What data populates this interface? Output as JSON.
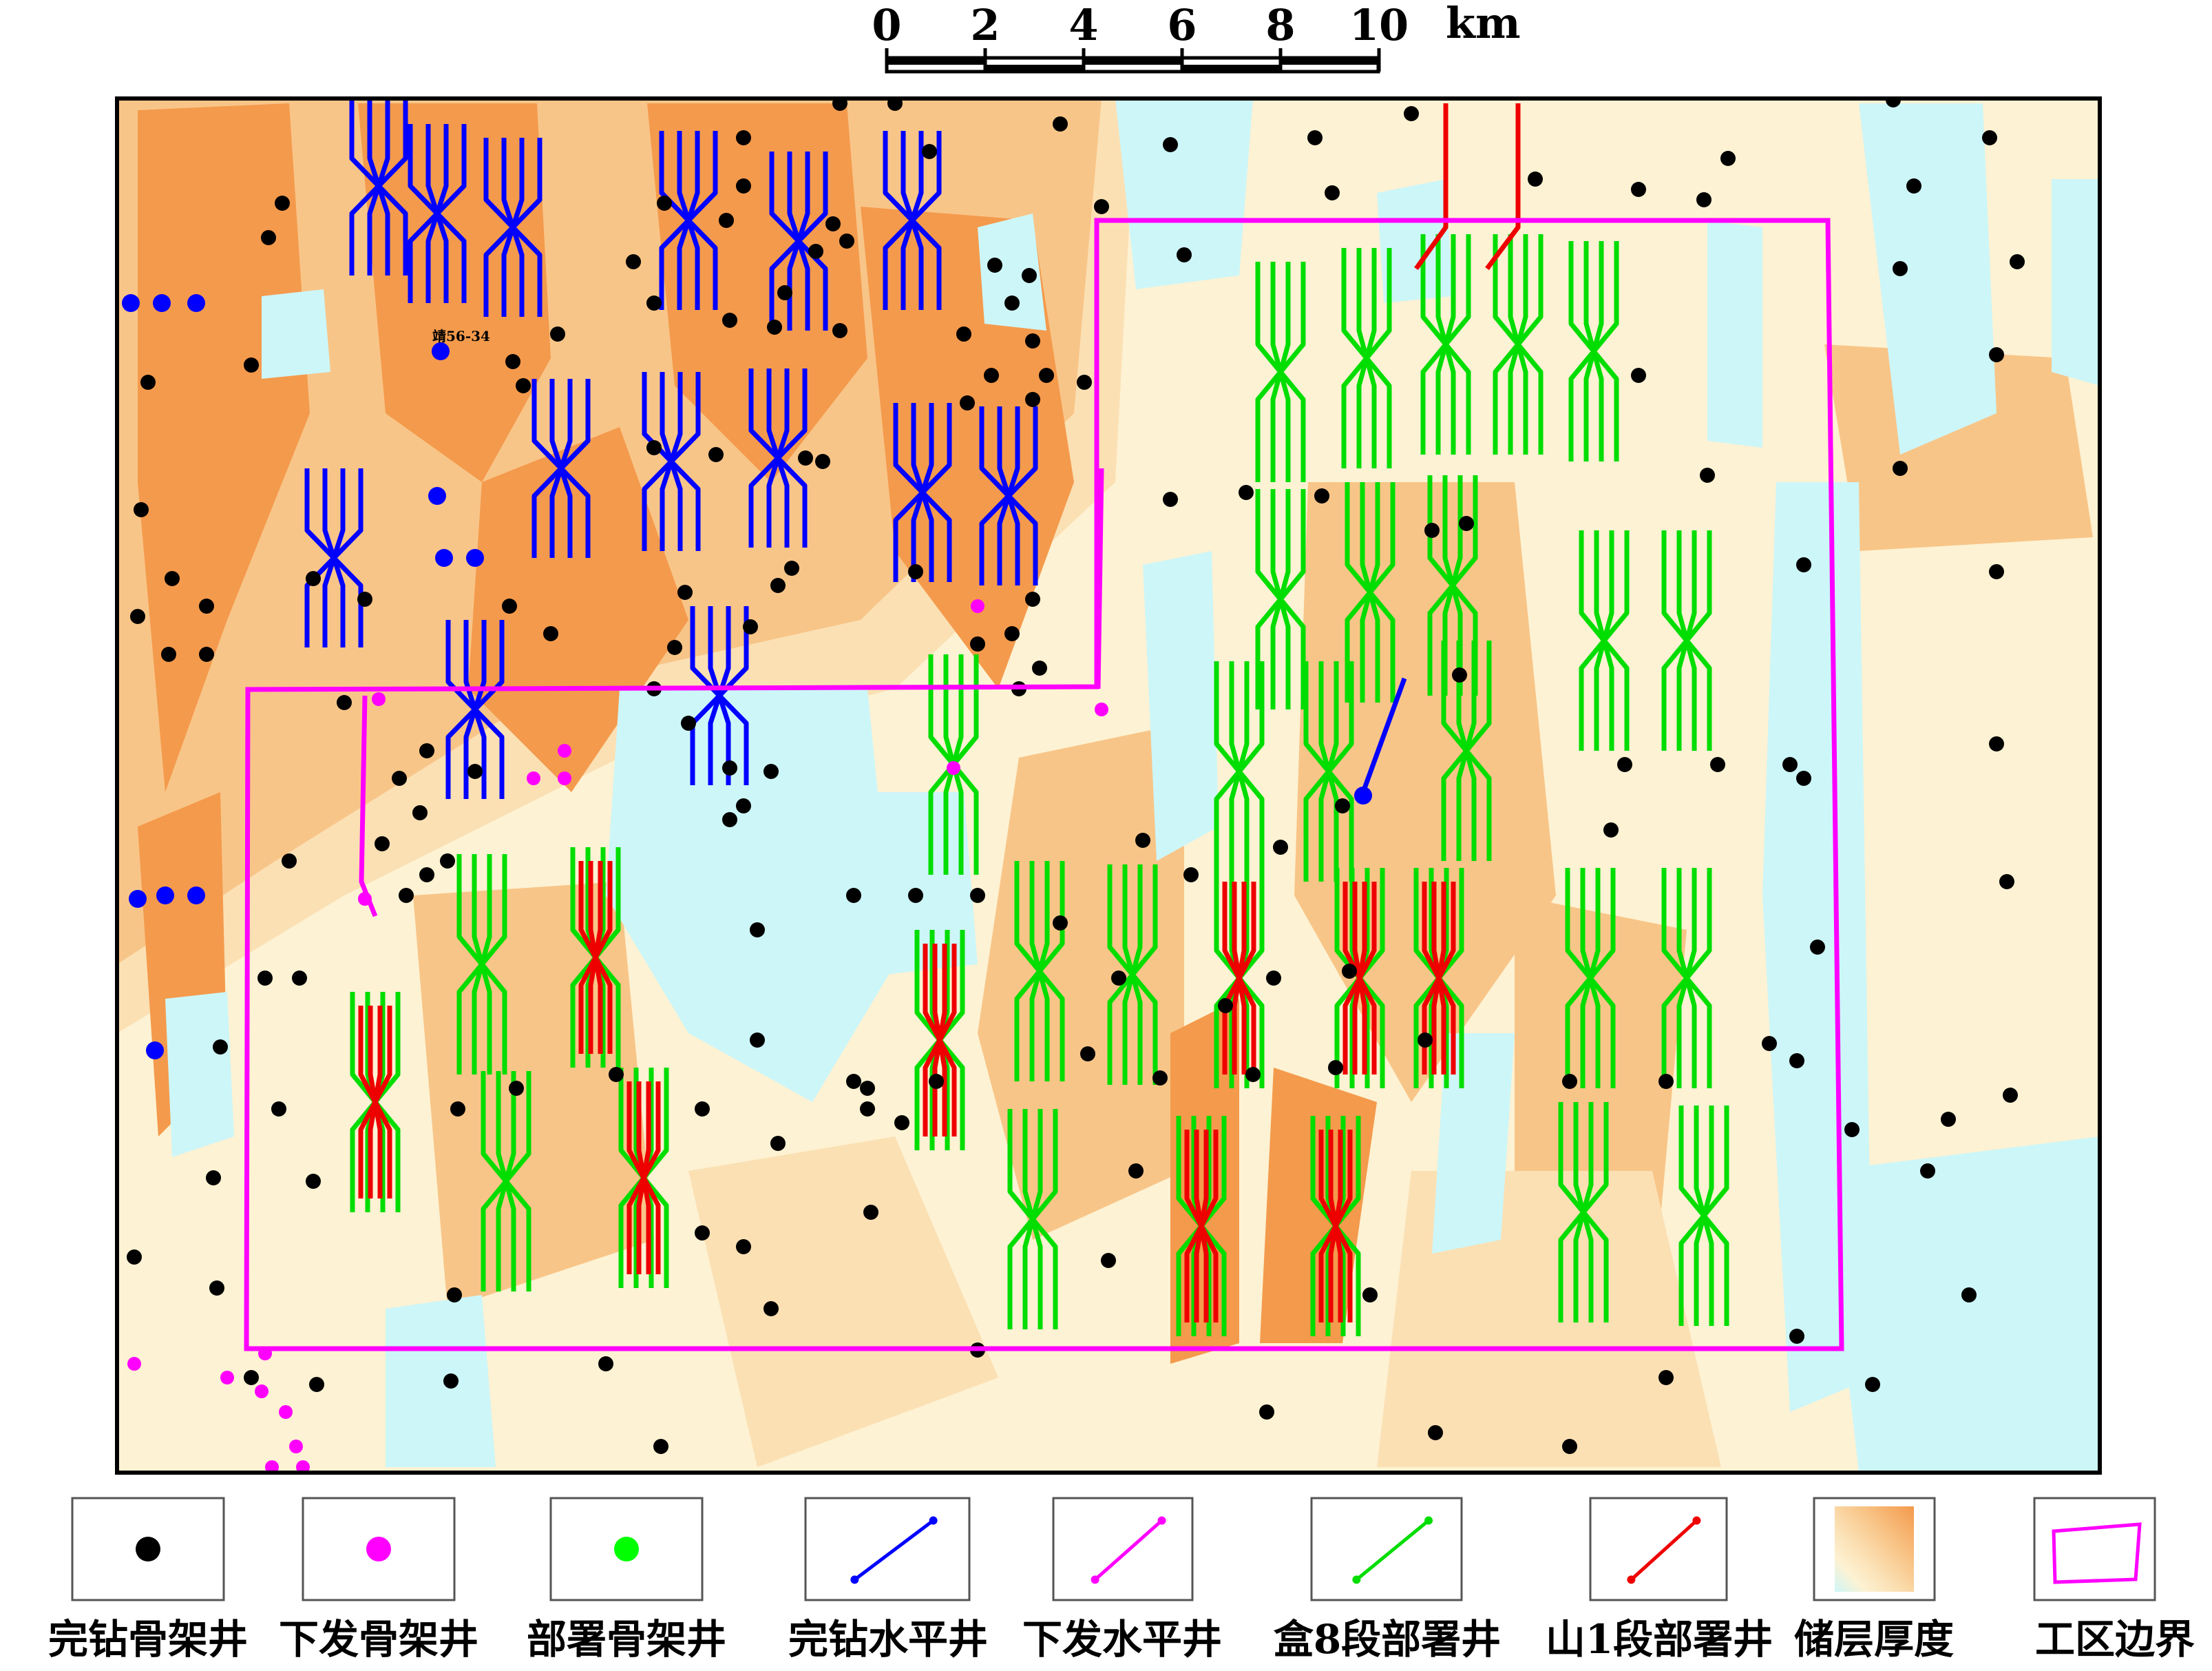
{
  "scale_bar": {
    "ticks": [
      "0",
      "2",
      "4",
      "6",
      "8",
      "10"
    ],
    "unit": "km"
  },
  "map_label": {
    "well_name": "靖56-34"
  },
  "legend": [
    {
      "label": "完钻骨架井",
      "symbol": "dot",
      "color": "#000000",
      "icon": "black-dot-icon"
    },
    {
      "label": "下发骨架井",
      "symbol": "dot",
      "color": "#ff00ff",
      "icon": "magenta-dot-icon"
    },
    {
      "label": "部署骨架井",
      "symbol": "dot",
      "color": "#00ff00",
      "icon": "green-dot-icon"
    },
    {
      "label": "完钻水平井",
      "symbol": "line",
      "color": "#0000ff",
      "icon": "blue-line-icon"
    },
    {
      "label": "下发水平井",
      "symbol": "line",
      "color": "#ff00ff",
      "icon": "magenta-line-icon"
    },
    {
      "label": "盒8段部署井",
      "symbol": "line",
      "color": "#00dd00",
      "icon": "green-line-icon"
    },
    {
      "label": "山1段部署井",
      "symbol": "line",
      "color": "#ee0000",
      "icon": "red-line-icon"
    },
    {
      "label": "储层厚度",
      "symbol": "gradient",
      "color": "#f4a35a",
      "icon": "thickness-gradient-icon"
    },
    {
      "label": "工区边界",
      "symbol": "polygon",
      "color": "#ff00ff",
      "icon": "boundary-polygon-icon"
    }
  ],
  "colors": {
    "thick": "#f49a4c",
    "medium": "#f8c588",
    "thin": "#fbe0b4",
    "very_thin": "#fdf2d3",
    "none": "#cdf6f8",
    "boundary": "#ff00ff",
    "completed_horizontal": "#0000ff",
    "h8_deploy": "#00dd00",
    "s1_deploy": "#ee0000"
  }
}
